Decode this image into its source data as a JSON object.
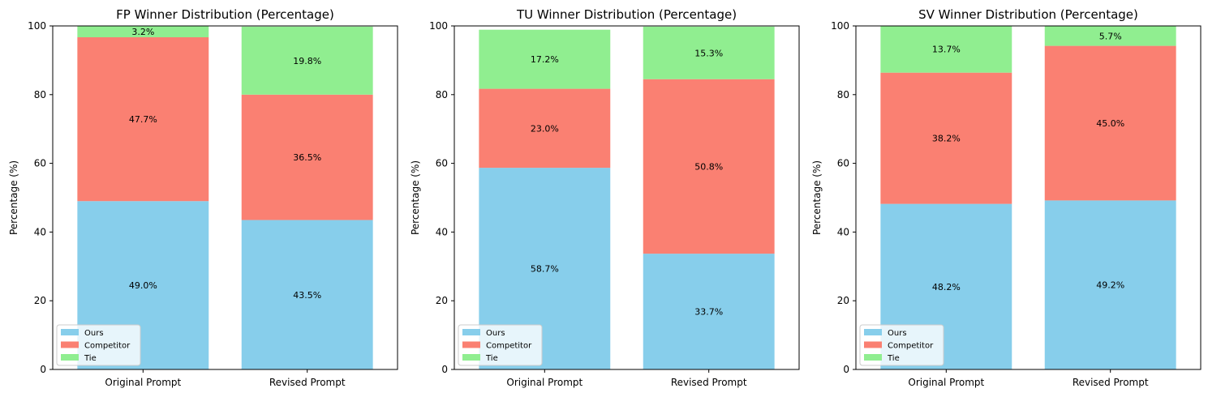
{
  "chart_data": [
    {
      "type": "bar",
      "stacked": true,
      "title": "FP Winner Distribution (Percentage)",
      "ylabel": "Percentage (%)",
      "xlabel": "",
      "ylim": [
        0,
        100
      ],
      "yticks": [
        0,
        20,
        40,
        60,
        80,
        100
      ],
      "categories": [
        "Original Prompt",
        "Revised Prompt"
      ],
      "series": [
        {
          "name": "Ours",
          "values": [
            49.0,
            43.5
          ],
          "labels": [
            "49.0%",
            "43.5%"
          ],
          "color": "#87ceeb"
        },
        {
          "name": "Competitor",
          "values": [
            47.7,
            36.5
          ],
          "labels": [
            "47.7%",
            "36.5%"
          ],
          "color": "#fa8072"
        },
        {
          "name": "Tie",
          "values": [
            3.2,
            19.8
          ],
          "labels": [
            "3.2%",
            "19.8%"
          ],
          "color": "#90ee90"
        }
      ],
      "legend": "lower-left"
    },
    {
      "type": "bar",
      "stacked": true,
      "title": "TU Winner Distribution (Percentage)",
      "ylabel": "Percentage (%)",
      "xlabel": "",
      "ylim": [
        0,
        100
      ],
      "yticks": [
        0,
        20,
        40,
        60,
        80,
        100
      ],
      "categories": [
        "Original Prompt",
        "Revised Prompt"
      ],
      "series": [
        {
          "name": "Ours",
          "values": [
            58.7,
            33.7
          ],
          "labels": [
            "58.7%",
            "33.7%"
          ],
          "color": "#87ceeb"
        },
        {
          "name": "Competitor",
          "values": [
            23.0,
            50.8
          ],
          "labels": [
            "23.0%",
            "50.8%"
          ],
          "color": "#fa8072"
        },
        {
          "name": "Tie",
          "values": [
            17.2,
            15.3
          ],
          "labels": [
            "17.2%",
            "15.3%"
          ],
          "color": "#90ee90"
        }
      ],
      "legend": "lower-left"
    },
    {
      "type": "bar",
      "stacked": true,
      "title": "SV Winner Distribution (Percentage)",
      "ylabel": "Percentage (%)",
      "xlabel": "",
      "ylim": [
        0,
        100
      ],
      "yticks": [
        0,
        20,
        40,
        60,
        80,
        100
      ],
      "categories": [
        "Original Prompt",
        "Revised Prompt"
      ],
      "series": [
        {
          "name": "Ours",
          "values": [
            48.2,
            49.2
          ],
          "labels": [
            "48.2%",
            "49.2%"
          ],
          "color": "#87ceeb"
        },
        {
          "name": "Competitor",
          "values": [
            38.2,
            45.0
          ],
          "labels": [
            "38.2%",
            "45.0%"
          ],
          "color": "#fa8072"
        },
        {
          "name": "Tie",
          "values": [
            13.7,
            5.7
          ],
          "labels": [
            "13.7%",
            "5.7%"
          ],
          "color": "#90ee90"
        }
      ],
      "legend": "lower-left"
    }
  ]
}
